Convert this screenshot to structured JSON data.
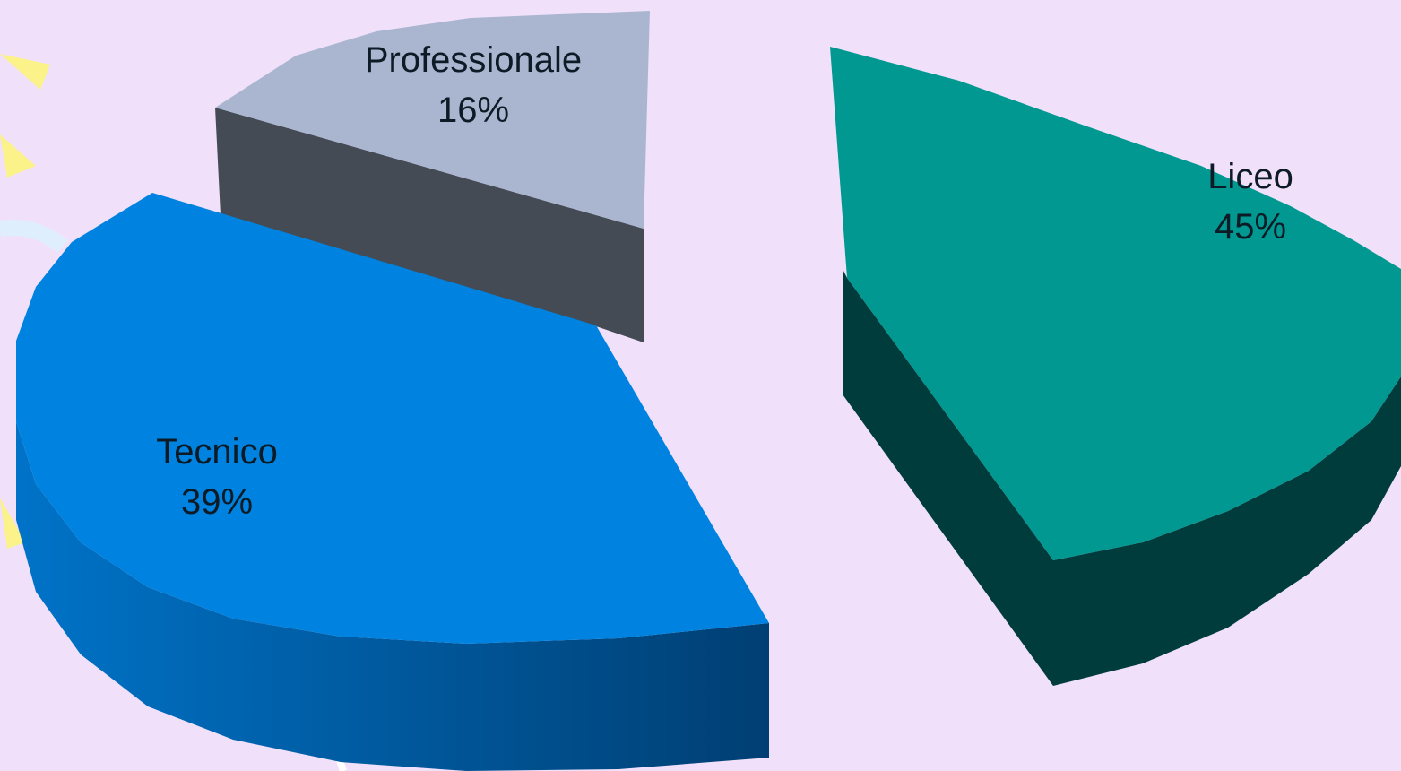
{
  "chart_data": {
    "type": "pie",
    "style": "3d-exploded",
    "title": "",
    "slices": [
      {
        "label": "Liceo",
        "value": 45,
        "percent_label": "45%",
        "color": "#009890",
        "side_color": "#003c3c"
      },
      {
        "label": "Tecnico",
        "value": 39,
        "percent_label": "39%",
        "color": "#0083e0",
        "side_color": "#005a9c"
      },
      {
        "label": "Professionale",
        "value": 16,
        "percent_label": "16%",
        "color": "#aab6d0",
        "side_color": "#444b54"
      }
    ],
    "background": "#f1e0f9"
  }
}
